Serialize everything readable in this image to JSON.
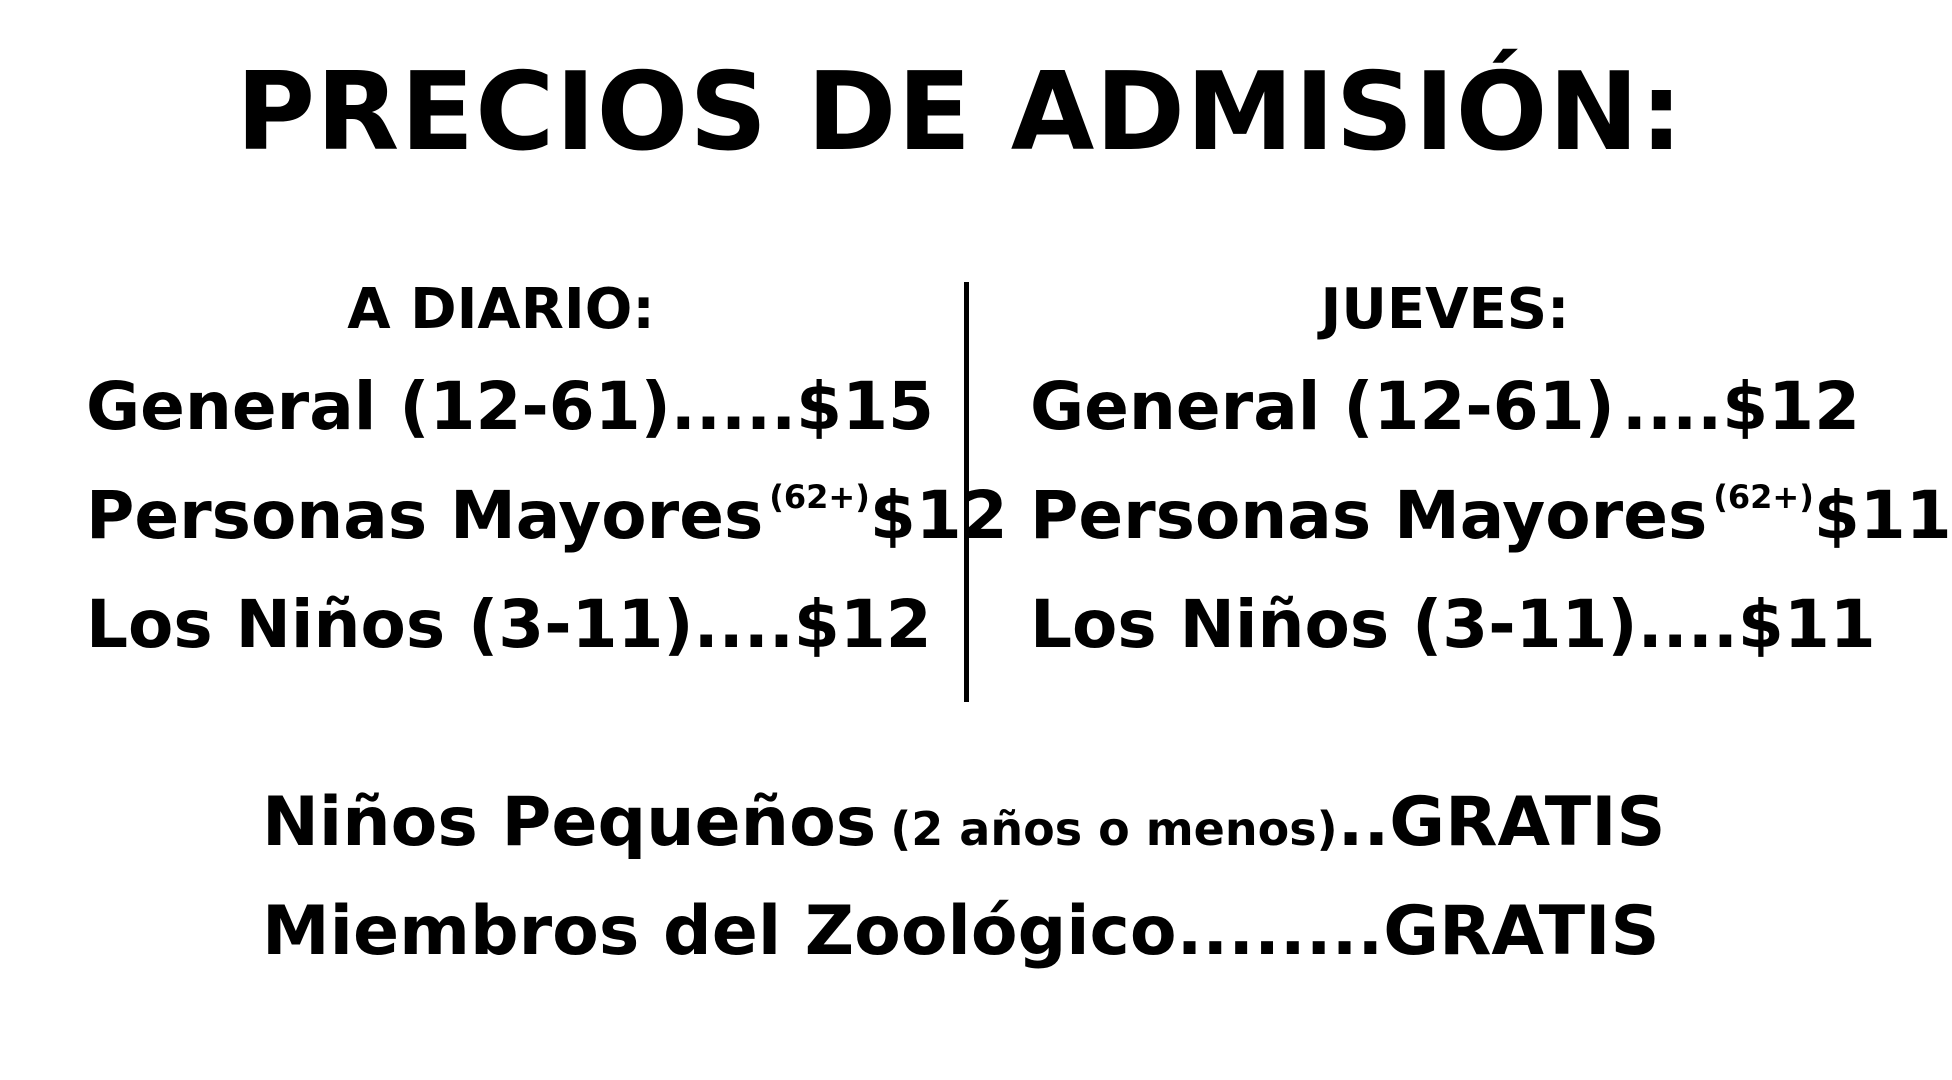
{
  "title": "PRECIOS DE ADMISIÓN:",
  "daily": {
    "heading": "A DIARIO:",
    "rows": [
      {
        "label": "General (12-61)",
        "note": "",
        "dots": ".....",
        "price": "$15"
      },
      {
        "label": "Personas Mayores",
        "note": "(62+)",
        "dots": "..",
        "price": "$12"
      },
      {
        "label": "Los Niños (3-11)",
        "note": "",
        "dots": "....",
        "price": "$12"
      }
    ]
  },
  "thursday": {
    "heading": "JUEVES:",
    "rows": [
      {
        "label": "General (12-61)",
        "note": "",
        "dots": "....",
        "price": "$12"
      },
      {
        "label": "Personas Mayores",
        "note": "(62+)",
        "dots": "",
        "price": "$11"
      },
      {
        "label": "Los Niños (3-11)",
        "note": "",
        "dots": "....",
        "price": "$11"
      }
    ]
  },
  "bottom": [
    {
      "label": "Niños Pequeños",
      "note": "(2 años o menos)",
      "dots": "..",
      "price": "GRATIS"
    },
    {
      "label": "Miembros del Zoológico",
      "note": "",
      "dots": "........",
      "price": "GRATIS"
    }
  ]
}
